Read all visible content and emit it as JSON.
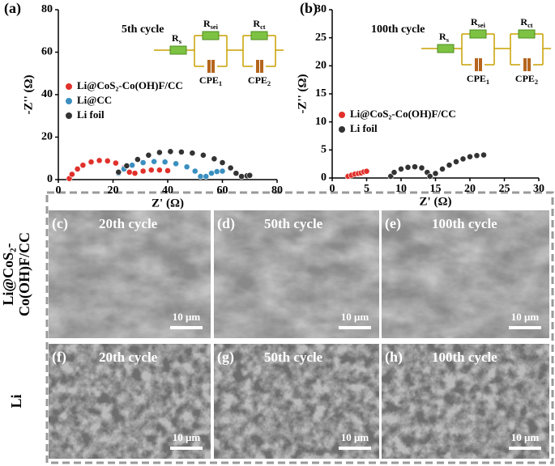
{
  "chart_data": [
    {
      "type": "scatter",
      "panel": "(a)",
      "annotation": "5th cycle",
      "xlabel": "Z' (Ω)",
      "ylabel": "-Z'' (Ω)",
      "xlim": [
        0,
        80
      ],
      "ylim": [
        0,
        80
      ],
      "xticks": [
        0,
        20,
        40,
        60,
        80
      ],
      "yticks": [
        0,
        20,
        40,
        60,
        80
      ],
      "circuit": [
        {
          "main": "R",
          "sub": "s"
        },
        {
          "main": "R",
          "sub": "sei"
        },
        {
          "main": "R",
          "sub": "ct"
        },
        {
          "main": "CPE",
          "sub": "1"
        },
        {
          "main": "CPE",
          "sub": "2"
        }
      ],
      "series": [
        {
          "name": "Li@CoS₂-Co(OH)F/CC",
          "color": "#e0302a",
          "x": [
            4,
            5,
            7,
            9,
            12,
            15,
            18,
            21,
            24,
            26,
            28,
            31,
            34,
            37,
            40
          ],
          "values": [
            0.5,
            2.5,
            5,
            6.8,
            8.3,
            9,
            8.8,
            7.8,
            5.5,
            3.5,
            3,
            4,
            4.5,
            4.5,
            4.2
          ]
        },
        {
          "name": "Li@CC",
          "color": "#3a8fc0",
          "x": [
            22,
            24,
            27,
            31,
            35,
            39,
            43,
            47,
            50,
            52,
            54,
            56,
            58,
            60
          ],
          "values": [
            3,
            5,
            6.8,
            8,
            8.5,
            8.3,
            7.5,
            6,
            4,
            1.5,
            1.5,
            3,
            3.8,
            4
          ]
        },
        {
          "name": "Li foil",
          "color": "#333333",
          "x": [
            22,
            25,
            29,
            33,
            37,
            41,
            45,
            49,
            53,
            57,
            60,
            63,
            65,
            67,
            69,
            70
          ],
          "values": [
            3.5,
            6.5,
            9.5,
            11.5,
            12.8,
            13.2,
            13,
            12.5,
            11.5,
            9.8,
            8,
            5.5,
            3,
            1.5,
            1.8,
            2
          ]
        }
      ]
    },
    {
      "type": "scatter",
      "panel": "(b)",
      "annotation": "100th cycle",
      "xlabel": "Z' (Ω)",
      "ylabel": "-Z'' (Ω)",
      "xlim": [
        0,
        30
      ],
      "ylim": [
        0,
        30
      ],
      "xticks": [
        0,
        5,
        10,
        15,
        20,
        25,
        30
      ],
      "yticks": [
        0,
        5,
        10,
        15,
        20,
        25,
        30
      ],
      "circuit": [
        {
          "main": "R",
          "sub": "s"
        },
        {
          "main": "R",
          "sub": "sei"
        },
        {
          "main": "R",
          "sub": "ct"
        },
        {
          "main": "CPE",
          "sub": "1"
        },
        {
          "main": "CPE",
          "sub": "2"
        }
      ],
      "series": [
        {
          "name": "Li@CoS₂-Co(OH)F/CC",
          "color": "#e0302a",
          "x": [
            2.3,
            2.8,
            3.3,
            3.8,
            4.2,
            4.6,
            5
          ],
          "values": [
            0.3,
            0.5,
            0.7,
            0.8,
            0.9,
            1.1,
            1.2
          ]
        },
        {
          "name": "Li foil",
          "color": "#333333",
          "x": [
            8.5,
            9,
            10,
            11,
            12,
            13,
            13.8,
            14.2,
            15,
            16,
            17,
            18,
            19,
            20,
            21,
            22
          ],
          "values": [
            0.3,
            1,
            1.6,
            1.9,
            2,
            1.8,
            1,
            0.3,
            0.8,
            1.6,
            2.3,
            2.9,
            3.4,
            3.8,
            4,
            4.1
          ]
        }
      ]
    }
  ],
  "sem": {
    "rows": [
      {
        "label": [
          "Li@CoS₂-",
          "Co(OH)F/CC"
        ],
        "panels": [
          {
            "label": "(c)",
            "cycle": "20th cycle",
            "scale": "10 μm"
          },
          {
            "label": "(d)",
            "cycle": "50th cycle",
            "scale": "10 μm"
          },
          {
            "label": "(e)",
            "cycle": "100th cycle",
            "scale": "10 μm"
          }
        ]
      },
      {
        "label": [
          "Li"
        ],
        "panels": [
          {
            "label": "(f)",
            "cycle": "20th cycle",
            "scale": "10 μm"
          },
          {
            "label": "(g)",
            "cycle": "50th cycle",
            "scale": "10 μm"
          },
          {
            "label": "(h)",
            "cycle": "100th cycle",
            "scale": "10 μm"
          }
        ]
      }
    ]
  }
}
